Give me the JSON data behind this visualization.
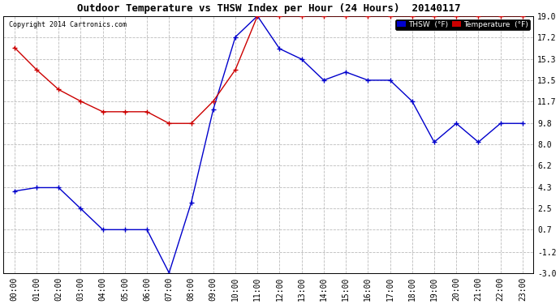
{
  "title": "Outdoor Temperature vs THSW Index per Hour (24 Hours)  20140117",
  "copyright": "Copyright 2014 Cartronics.com",
  "hours": [
    "00:00",
    "01:00",
    "02:00",
    "03:00",
    "04:00",
    "05:00",
    "06:00",
    "07:00",
    "08:00",
    "09:00",
    "10:00",
    "11:00",
    "12:00",
    "13:00",
    "14:00",
    "15:00",
    "16:00",
    "17:00",
    "18:00",
    "19:00",
    "20:00",
    "21:00",
    "22:00",
    "23:00"
  ],
  "thsw": [
    4.0,
    4.3,
    4.3,
    2.5,
    0.7,
    0.7,
    0.7,
    -3.0,
    3.0,
    11.0,
    17.2,
    19.0,
    16.2,
    15.3,
    13.5,
    14.2,
    13.5,
    13.5,
    11.7,
    8.2,
    9.8,
    8.2,
    9.8,
    9.8
  ],
  "temperature": [
    16.3,
    14.4,
    12.7,
    11.7,
    10.8,
    10.8,
    10.8,
    9.8,
    9.8,
    11.7,
    14.4,
    19.0,
    19.0,
    19.0,
    19.0,
    19.0,
    19.0,
    19.0,
    19.0,
    19.0,
    19.0,
    19.0,
    19.0,
    19.0
  ],
  "ylim": [
    -3.0,
    19.0
  ],
  "ytick_labels": [
    "-3.0",
    "-1.2",
    "0.7",
    "2.5",
    "4.3",
    "6.2",
    "8.0",
    "9.8",
    "11.7",
    "13.5",
    "15.3",
    "17.2",
    "19.0"
  ],
  "ytick_values": [
    -3.0,
    -1.2,
    0.7,
    2.5,
    4.3,
    6.2,
    8.0,
    9.8,
    11.7,
    13.5,
    15.3,
    17.2,
    19.0
  ],
  "thsw_color": "#0000cc",
  "temp_color": "#cc0000",
  "bg_color": "#ffffff",
  "grid_color": "#bbbbbb",
  "title_fontsize": 9,
  "tick_fontsize": 7,
  "copyright_fontsize": 6,
  "legend_thsw_bg": "#0000cc",
  "legend_temp_bg": "#cc0000"
}
